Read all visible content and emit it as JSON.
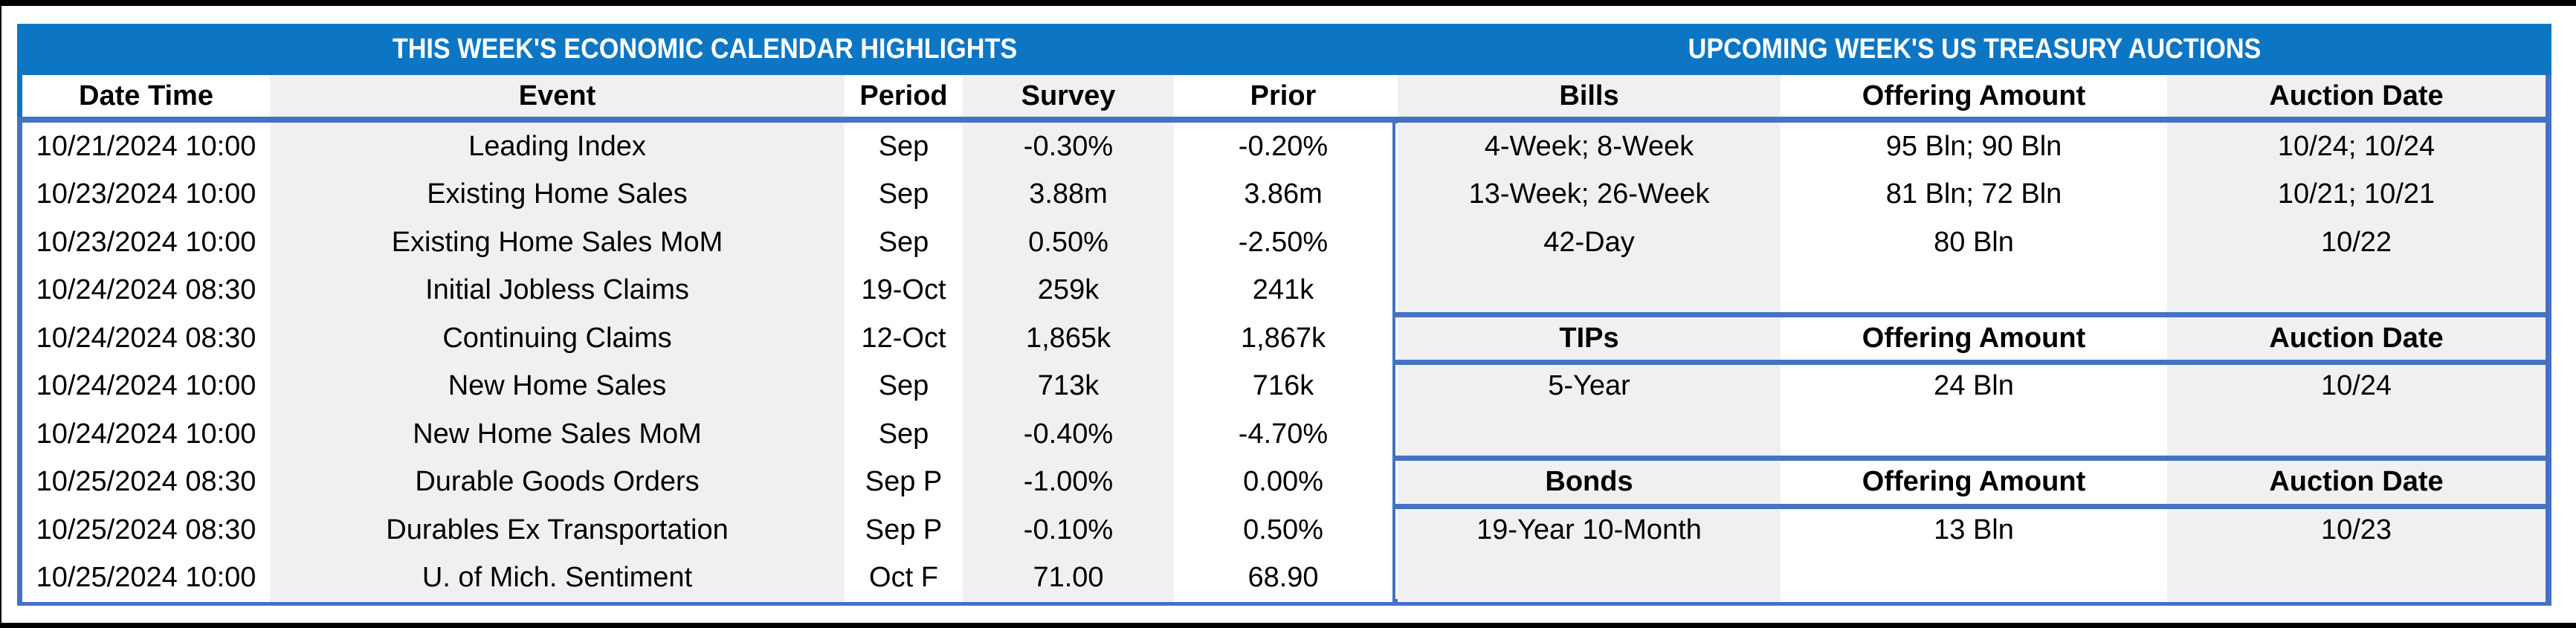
{
  "banner": {
    "left_title": "THIS WEEK'S ECONOMIC CALENDAR HIGHLIGHTS",
    "right_title": "UPCOMING WEEK'S US TREASURY AUCTIONS",
    "bg_color": "#0D76C4",
    "text_color": "#FFFFFF"
  },
  "colors": {
    "border_blue": "#4472C4",
    "band_gray": "#F0F0F0",
    "frame_black": "#000000"
  },
  "calendar": {
    "headers": [
      "Date Time",
      "Event",
      "Period",
      "Survey",
      "Prior"
    ],
    "rows": [
      [
        "10/21/2024 10:00",
        "Leading Index",
        "Sep",
        "-0.30%",
        "-0.20%"
      ],
      [
        "10/23/2024 10:00",
        "Existing Home Sales",
        "Sep",
        "3.88m",
        "3.86m"
      ],
      [
        "10/23/2024 10:00",
        "Existing Home Sales MoM",
        "Sep",
        "0.50%",
        "-2.50%"
      ],
      [
        "10/24/2024 08:30",
        "Initial Jobless Claims",
        "19-Oct",
        "259k",
        "241k"
      ],
      [
        "10/24/2024 08:30",
        "Continuing Claims",
        "12-Oct",
        "1,865k",
        "1,867k"
      ],
      [
        "10/24/2024 10:00",
        "New Home Sales",
        "Sep",
        "713k",
        "716k"
      ],
      [
        "10/24/2024 10:00",
        "New Home Sales MoM",
        "Sep",
        "-0.40%",
        "-4.70%"
      ],
      [
        "10/25/2024 08:30",
        "Durable Goods Orders",
        "Sep P",
        "-1.00%",
        "0.00%"
      ],
      [
        "10/25/2024 08:30",
        "Durables Ex Transportation",
        "Sep P",
        "-0.10%",
        "0.50%"
      ],
      [
        "10/25/2024 10:00",
        "U. of Mich. Sentiment",
        "Oct F",
        "71.00",
        "68.90"
      ]
    ]
  },
  "auctions": {
    "bills": {
      "headers": [
        "Bills",
        "Offering Amount",
        "Auction Date"
      ],
      "rows": [
        [
          "4-Week; 8-Week",
          "95 Bln; 90 Bln",
          "10/24; 10/24"
        ],
        [
          "13-Week; 26-Week",
          "81 Bln; 72 Bln",
          "10/21; 10/21"
        ],
        [
          "42-Day",
          "80 Bln",
          "10/22"
        ]
      ]
    },
    "tips": {
      "headers": [
        "TIPs",
        "Offering Amount",
        "Auction Date"
      ],
      "rows": [
        [
          "5-Year",
          "24 Bln",
          "10/24"
        ]
      ]
    },
    "bonds": {
      "headers": [
        "Bonds",
        "Offering Amount",
        "Auction Date"
      ],
      "rows": [
        [
          "19-Year 10-Month",
          "13 Bln",
          "10/23"
        ]
      ]
    }
  }
}
